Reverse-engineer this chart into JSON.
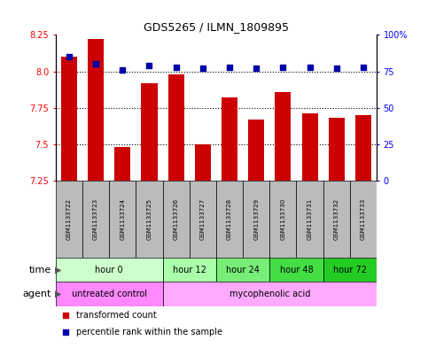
{
  "title": "GDS5265 / ILMN_1809895",
  "samples": [
    "GSM1133722",
    "GSM1133723",
    "GSM1133724",
    "GSM1133725",
    "GSM1133726",
    "GSM1133727",
    "GSM1133728",
    "GSM1133729",
    "GSM1133730",
    "GSM1133731",
    "GSM1133732",
    "GSM1133733"
  ],
  "bar_values": [
    8.1,
    8.22,
    7.48,
    7.92,
    7.98,
    7.5,
    7.82,
    7.67,
    7.86,
    7.71,
    7.68,
    7.7
  ],
  "percentile_values": [
    85,
    80,
    76,
    79,
    78,
    77,
    78,
    77,
    78,
    78,
    77,
    78
  ],
  "ylim_left": [
    7.25,
    8.25
  ],
  "ylim_right": [
    0,
    100
  ],
  "yticks_left": [
    7.25,
    7.5,
    7.75,
    8.0,
    8.25
  ],
  "yticks_right": [
    0,
    25,
    50,
    75,
    100
  ],
  "yticklabels_right": [
    "0",
    "25",
    "50",
    "75",
    "100%"
  ],
  "bar_color": "#CC0000",
  "percentile_color": "#0000AA",
  "bg_plot": "#FFFFFF",
  "time_groups": [
    {
      "label": "hour 0",
      "start": 0,
      "end": 3,
      "color": "#CCFFCC"
    },
    {
      "label": "hour 12",
      "start": 4,
      "end": 5,
      "color": "#AAFFAA"
    },
    {
      "label": "hour 24",
      "start": 6,
      "end": 7,
      "color": "#77EE77"
    },
    {
      "label": "hour 48",
      "start": 8,
      "end": 9,
      "color": "#44DD44"
    },
    {
      "label": "hour 72",
      "start": 10,
      "end": 11,
      "color": "#22CC22"
    }
  ],
  "agent_groups": [
    {
      "label": "untreated control",
      "start": 0,
      "end": 3,
      "color": "#FF88FF"
    },
    {
      "label": "mycophenolic acid",
      "start": 4,
      "end": 11,
      "color": "#FFAAFF"
    }
  ],
  "sample_bg_color": "#BBBBBB",
  "legend_items": [
    {
      "label": "transformed count",
      "color": "#CC0000"
    },
    {
      "label": "percentile rank within the sample",
      "color": "#0000AA"
    }
  ]
}
